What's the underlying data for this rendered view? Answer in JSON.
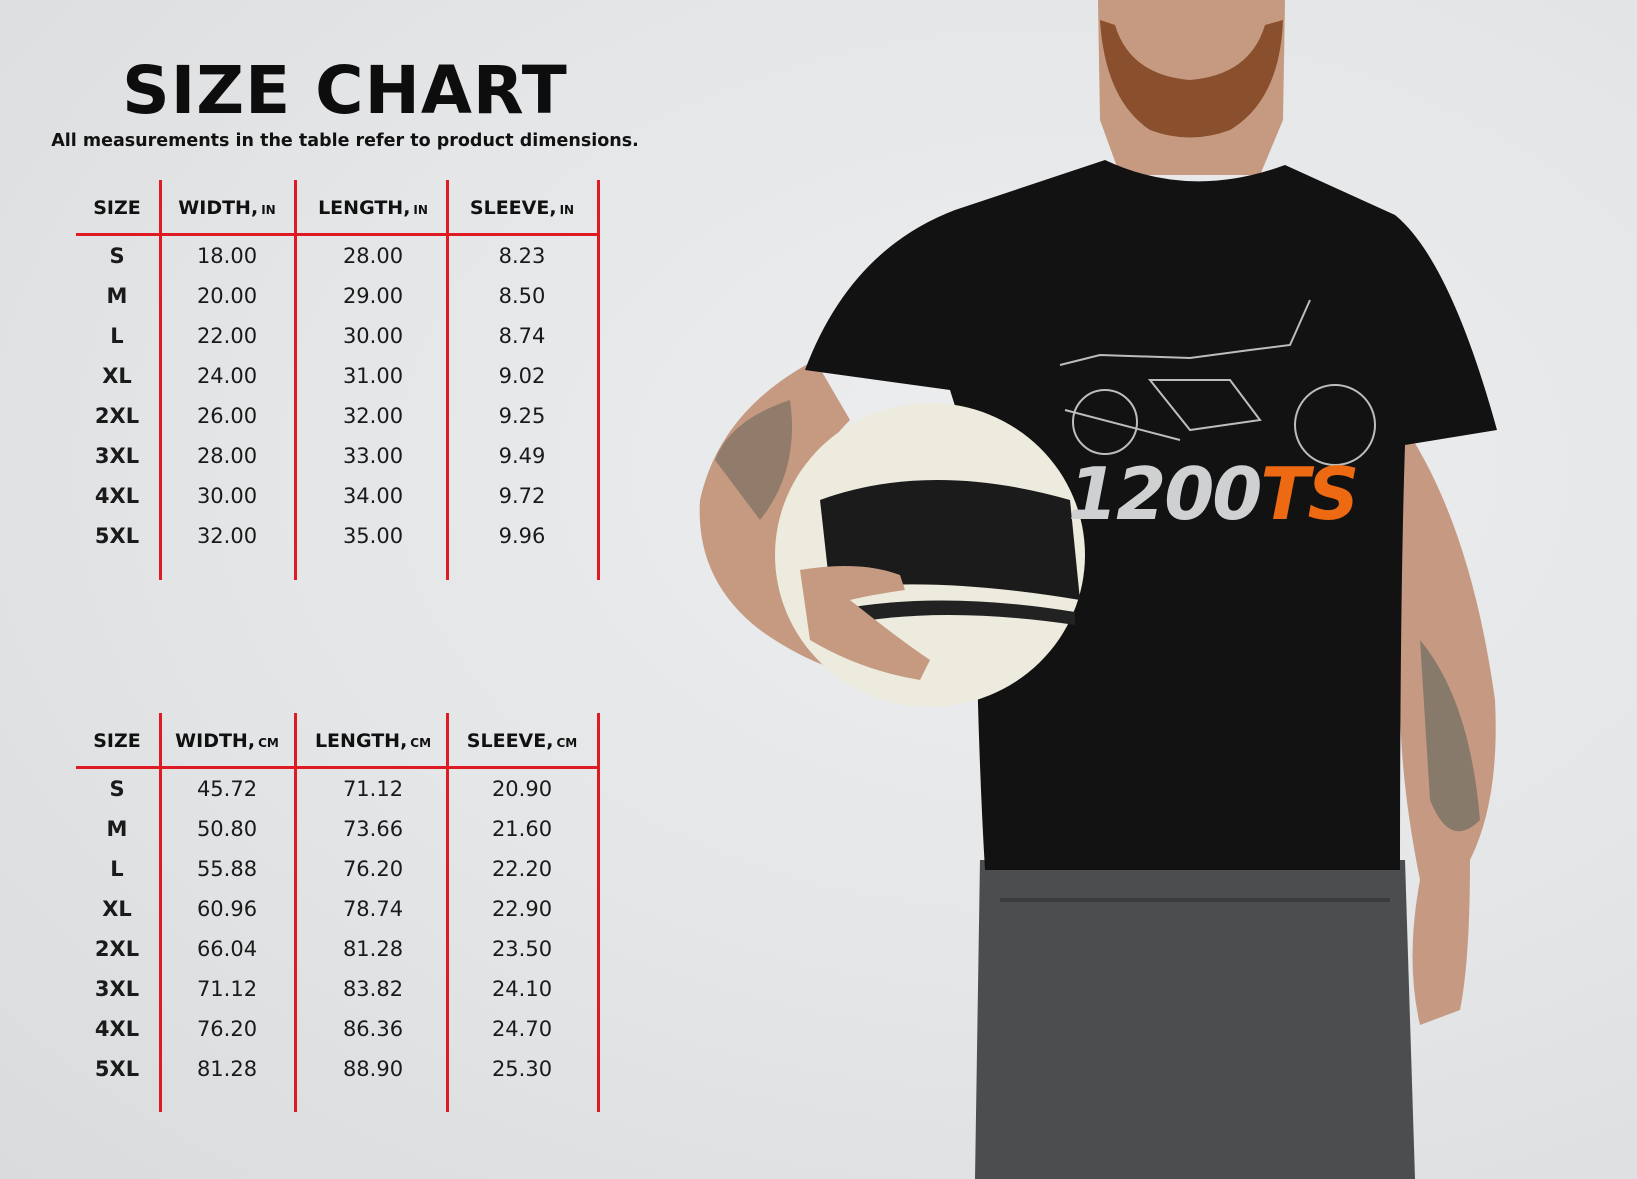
{
  "title": "SIZE CHART",
  "subtitle": "All measurements in the table refer to product dimensions.",
  "colors": {
    "divider": "#e01a22",
    "shirt": "#111111",
    "logo_accent": "#ee6a12",
    "logo_main": "#cfd0d2"
  },
  "tables": [
    {
      "headers": [
        {
          "label": "SIZE",
          "unit": ""
        },
        {
          "label": "WIDTH,",
          "unit": "IN"
        },
        {
          "label": "LENGTH,",
          "unit": "IN"
        },
        {
          "label": "SLEEVE,",
          "unit": "IN"
        }
      ],
      "rows": [
        [
          "S",
          "18.00",
          "28.00",
          "8.23"
        ],
        [
          "M",
          "20.00",
          "29.00",
          "8.50"
        ],
        [
          "L",
          "22.00",
          "30.00",
          "8.74"
        ],
        [
          "XL",
          "24.00",
          "31.00",
          "9.02"
        ],
        [
          "2XL",
          "26.00",
          "32.00",
          "9.25"
        ],
        [
          "3XL",
          "28.00",
          "33.00",
          "9.49"
        ],
        [
          "4XL",
          "30.00",
          "34.00",
          "9.72"
        ],
        [
          "5XL",
          "32.00",
          "35.00",
          "9.96"
        ]
      ]
    },
    {
      "headers": [
        {
          "label": "SIZE",
          "unit": ""
        },
        {
          "label": "WIDTH,",
          "unit": "CM"
        },
        {
          "label": "LENGTH,",
          "unit": "CM"
        },
        {
          "label": "SLEEVE,",
          "unit": "CM"
        }
      ],
      "rows": [
        [
          "S",
          "45.72",
          "71.12",
          "20.90"
        ],
        [
          "M",
          "50.80",
          "73.66",
          "21.60"
        ],
        [
          "L",
          "55.88",
          "76.20",
          "22.20"
        ],
        [
          "XL",
          "60.96",
          "78.74",
          "22.90"
        ],
        [
          "2XL",
          "66.04",
          "81.28",
          "23.50"
        ],
        [
          "3XL",
          "71.12",
          "83.82",
          "24.10"
        ],
        [
          "4XL",
          "76.20",
          "86.36",
          "24.70"
        ],
        [
          "5XL",
          "81.28",
          "88.90",
          "25.30"
        ]
      ]
    }
  ],
  "product_image": {
    "description_icon": "man-wearing-tshirt-holding-helmet",
    "logo_text_main": "1200",
    "logo_text_accent": "TS"
  }
}
